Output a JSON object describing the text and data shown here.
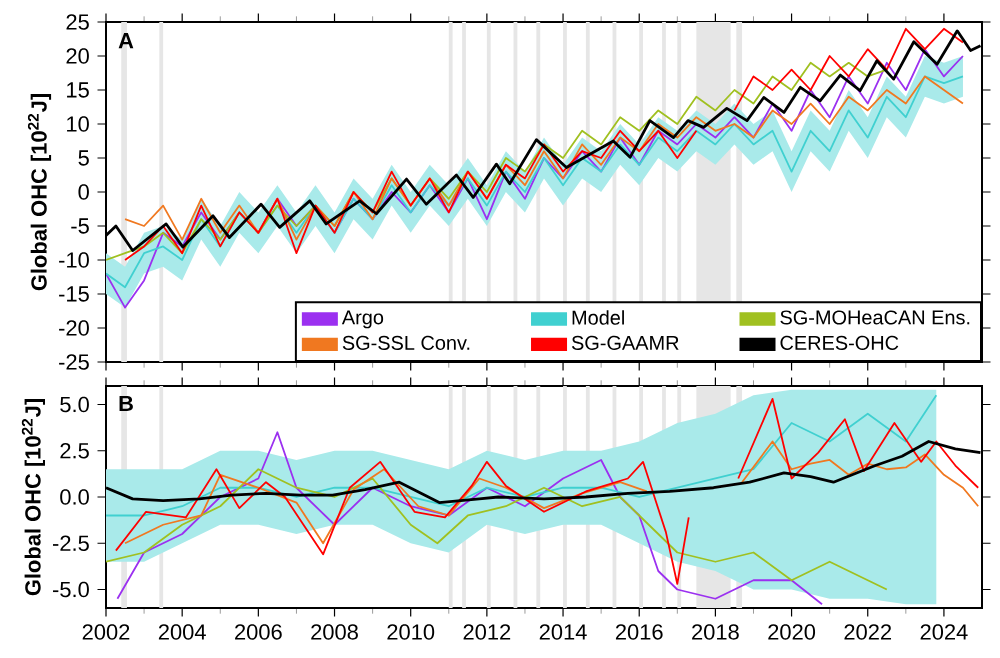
{
  "chart_data": [
    {
      "type": "line",
      "annotations": [
        "A"
      ],
      "ylabel": "Global OHC [10$^{22}$J]",
      "legend": "bottom right",
      "tick_labels": "y",
      "xlim": [
        2002,
        2025
      ],
      "xticks": [
        2002,
        2004,
        2006,
        2008,
        2010,
        2012,
        2014,
        2016,
        2018,
        2020,
        2022,
        2024
      ],
      "ylim": [
        -25,
        25
      ],
      "yticks": [
        -25,
        -20,
        -15,
        -10,
        -5,
        0,
        5,
        10,
        15,
        20,
        25
      ],
      "bands": [
        {
          "axis": "x",
          "from": 2002.4,
          "to": 2002.55,
          "color": "#e6e6e6"
        },
        {
          "axis": "x",
          "from": 2003.4,
          "to": 2003.5,
          "color": "#e6e6e6"
        },
        {
          "axis": "x",
          "from": 2011.0,
          "to": 2011.1,
          "color": "#e6e6e6"
        },
        {
          "axis": "x",
          "from": 2011.35,
          "to": 2011.45,
          "color": "#e6e6e6"
        },
        {
          "axis": "x",
          "from": 2012.0,
          "to": 2012.1,
          "color": "#e6e6e6"
        },
        {
          "axis": "x",
          "from": 2012.7,
          "to": 2012.8,
          "color": "#e6e6e6"
        },
        {
          "axis": "x",
          "from": 2013.3,
          "to": 2013.4,
          "color": "#e6e6e6"
        },
        {
          "axis": "x",
          "from": 2014.0,
          "to": 2014.1,
          "color": "#e6e6e6"
        },
        {
          "axis": "x",
          "from": 2014.6,
          "to": 2014.7,
          "color": "#e6e6e6"
        },
        {
          "axis": "x",
          "from": 2015.3,
          "to": 2015.4,
          "color": "#e6e6e6"
        },
        {
          "axis": "x",
          "from": 2016.0,
          "to": 2016.1,
          "color": "#e6e6e6"
        },
        {
          "axis": "x",
          "from": 2016.6,
          "to": 2016.7,
          "color": "#e6e6e6"
        },
        {
          "axis": "x",
          "from": 2017.0,
          "to": 2017.1,
          "color": "#e6e6e6"
        },
        {
          "axis": "x",
          "from": 2017.5,
          "to": 2018.4,
          "color": "#e6e6e6"
        },
        {
          "axis": "x",
          "from": 2018.55,
          "to": 2018.7,
          "color": "#e6e6e6"
        }
      ],
      "series": [
        {
          "name": "Argo",
          "color": "#9b30f0",
          "x": [
            2002,
            2002.5,
            2003,
            2003.5,
            2004,
            2004.5,
            2005,
            2005.5,
            2006,
            2006.5,
            2007,
            2007.5,
            2008,
            2008.5,
            2009,
            2009.5,
            2010,
            2010.5,
            2011,
            2011.5,
            2012,
            2012.5,
            2013,
            2013.5,
            2014,
            2014.5,
            2015,
            2015.5,
            2016,
            2016.5,
            2017,
            2017.5,
            2018,
            2018.5,
            2019,
            2019.5,
            2020,
            2020.5,
            2021,
            2021.5,
            2022,
            2022.5,
            2023,
            2023.5,
            2024,
            2024.5
          ],
          "values": [
            -12,
            -17,
            -13,
            -6,
            -8,
            -3,
            -7,
            -3,
            -6,
            -1,
            -5,
            -2,
            -6,
            -1,
            -4,
            0,
            -3,
            1,
            -3,
            2,
            -4,
            3,
            -1,
            5,
            2,
            6,
            3,
            8,
            4,
            9,
            7,
            10,
            8,
            11,
            8,
            13,
            9,
            15,
            11,
            17,
            13,
            19,
            15,
            21,
            17,
            20
          ]
        },
        {
          "name": "Model",
          "color": "#40d0d0",
          "x": [
            2002,
            2002.5,
            2003,
            2003.5,
            2004,
            2004.5,
            2005,
            2005.5,
            2006,
            2006.5,
            2007,
            2007.5,
            2008,
            2008.5,
            2009,
            2009.5,
            2010,
            2010.5,
            2011,
            2011.5,
            2012,
            2012.5,
            2013,
            2013.5,
            2014,
            2014.5,
            2015,
            2015.5,
            2016,
            2016.5,
            2017,
            2017.5,
            2018,
            2018.5,
            2019,
            2019.5,
            2020,
            2020.5,
            2021,
            2021.5,
            2022,
            2022.5,
            2023,
            2023.5,
            2024,
            2024.5
          ],
          "values": [
            -12,
            -14,
            -9,
            -8,
            -10,
            -4,
            -8,
            -3,
            -6,
            -2,
            -6,
            -2,
            -6,
            -1,
            -4,
            1,
            -3,
            1,
            -2,
            2,
            -2,
            3,
            0,
            5,
            1,
            5,
            3,
            7,
            4,
            8,
            6,
            9,
            7,
            10,
            7,
            9,
            3,
            9,
            6,
            12,
            8,
            14,
            11,
            17,
            16,
            17
          ],
          "lower": [
            -15,
            -17,
            -12,
            -11,
            -13,
            -7,
            -11,
            -6,
            -9,
            -5,
            -9,
            -5,
            -9,
            -4,
            -7,
            -2,
            -6,
            -2,
            -5,
            -1,
            -5,
            0,
            -3,
            2,
            -2,
            2,
            0,
            4,
            1,
            5,
            3,
            6,
            4,
            7,
            4,
            6,
            0,
            6,
            3,
            9,
            5,
            11,
            8,
            14,
            13,
            14
          ],
          "upper": [
            -9,
            -11,
            -6,
            -5,
            -7,
            -1,
            -5,
            0,
            -3,
            1,
            -3,
            1,
            -3,
            2,
            -1,
            4,
            0,
            4,
            1,
            5,
            1,
            6,
            3,
            8,
            4,
            8,
            6,
            10,
            7,
            11,
            9,
            12,
            10,
            13,
            10,
            12,
            6,
            12,
            9,
            15,
            11,
            17,
            14,
            20,
            19,
            20
          ]
        },
        {
          "name": "SG-MOHeaCAN Ens.",
          "color": "#a0c020",
          "x": [
            2002,
            2002.5,
            2003,
            2003.5,
            2004,
            2004.5,
            2005,
            2005.5,
            2006,
            2006.5,
            2007,
            2007.5,
            2008,
            2008.5,
            2009,
            2009.5,
            2010,
            2010.5,
            2011,
            2011.5,
            2012,
            2012.5,
            2013,
            2013.5,
            2014,
            2014.5,
            2015,
            2015.5,
            2016,
            2016.5,
            2017,
            2017.5,
            2018,
            2018.5,
            2019,
            2019.5,
            2020,
            2020.5,
            2021,
            2021.5,
            2022,
            2022.5
          ],
          "values": [
            -10,
            -9,
            -8,
            -6,
            -9,
            -4,
            -7,
            -3,
            -6,
            -2,
            -5,
            -2,
            -5,
            0,
            -3,
            2,
            -2,
            2,
            -1,
            3,
            0,
            5,
            3,
            7,
            5,
            9,
            7,
            11,
            9,
            12,
            10,
            14,
            12,
            15,
            13,
            17,
            15,
            19,
            17,
            19,
            17,
            18
          ]
        },
        {
          "name": "SG-SSL Conv.",
          "color": "#f07820",
          "x": [
            2002.5,
            2003,
            2003.5,
            2004,
            2004.5,
            2005,
            2005.5,
            2006,
            2006.5,
            2007,
            2007.5,
            2008,
            2008.5,
            2009,
            2009.5,
            2010,
            2010.5,
            2011,
            2011.5,
            2012,
            2012.5,
            2013,
            2013.5,
            2014,
            2014.5,
            2015,
            2015.5,
            2016,
            2016.5,
            2017,
            2017.5,
            2018,
            2018.5,
            2019,
            2019.5,
            2020,
            2020.5,
            2021,
            2021.5,
            2022,
            2022.5,
            2023,
            2023.5,
            2024,
            2024.5
          ],
          "values": [
            -4,
            -5,
            -2,
            -7,
            -1,
            -6,
            -2,
            -6,
            -1,
            -7,
            -2,
            -5,
            0,
            -4,
            2,
            -2,
            2,
            -2,
            3,
            -1,
            4,
            1,
            6,
            2,
            7,
            4,
            8,
            6,
            10,
            8,
            11,
            9,
            10,
            8,
            12,
            10,
            13,
            10,
            14,
            12,
            15,
            13,
            17,
            15,
            13
          ]
        },
        {
          "name": "SG-GAAMR",
          "color": "#ff0000",
          "x": [
            2002.5,
            2003,
            2003.5,
            2004,
            2004.5,
            2005,
            2005.5,
            2006,
            2006.5,
            2007,
            2007.5,
            2008,
            2008.5,
            2009,
            2009.5,
            2010,
            2010.5,
            2011,
            2011.5,
            2012,
            2012.5,
            2013,
            2013.5,
            2014,
            2014.5,
            2015,
            2015.5,
            2016,
            2016.5,
            2017,
            2017.5,
            2018,
            2018.5,
            2019,
            2019.5,
            2020,
            2020.5,
            2021,
            2021.5,
            2022,
            2022.5,
            2023,
            2023.5,
            2024,
            2024.5
          ],
          "values": [
            -10,
            -8,
            -5,
            -9,
            -2,
            -8,
            -3,
            -6,
            -1,
            -9,
            -2,
            -6,
            0,
            -3,
            3,
            -2,
            2,
            -3,
            3,
            -1,
            4,
            2,
            7,
            3,
            6,
            5,
            9,
            6,
            9,
            5,
            9,
            null,
            12,
            17,
            15,
            18,
            15,
            20,
            17,
            21,
            18,
            24,
            21,
            24,
            22
          ]
        },
        {
          "name": "CERES-OHC",
          "color": "#000000",
          "x": [
            2002.0,
            2002.26,
            2002.7,
            2003.58,
            2004.02,
            2004.81,
            2005.24,
            2006.07,
            2006.56,
            2007.35,
            2007.78,
            2008.66,
            2009.1,
            2009.89,
            2010.41,
            2011.2,
            2011.64,
            2012.25,
            2012.6,
            2013.3,
            2014.09,
            2015.32,
            2015.76,
            2016.28,
            2016.9,
            2017.28,
            2017.69,
            2018.3,
            2018.83,
            2019.27,
            2019.8,
            2020.23,
            2020.75,
            2021.28,
            2021.8,
            2022.24,
            2022.68,
            2023.21,
            2023.82,
            2024.35,
            2024.7,
            2024.96
          ],
          "values": [
            -6.4,
            -5,
            -8.6,
            -4.7,
            -8.1,
            -3.5,
            -6.7,
            -1.8,
            -5.2,
            -1.3,
            -4.7,
            -1.3,
            -3.2,
            1.9,
            -1.8,
            2.5,
            -0.8,
            4.1,
            1.2,
            7.7,
            3.6,
            7.5,
            5.1,
            10.5,
            8,
            10.5,
            9.5,
            12.3,
            10.5,
            13.9,
            11.7,
            15.4,
            13.4,
            17.2,
            14.9,
            19.3,
            16.6,
            22.1,
            18.8,
            23.7,
            20.8,
            21.5
          ]
        }
      ]
    },
    {
      "type": "line",
      "annotations": [
        "B"
      ],
      "ylabel": "Global OHC [10$^{22}$J]",
      "xlim": [
        2002,
        2025
      ],
      "xticks": [
        2002,
        2004,
        2006,
        2008,
        2010,
        2012,
        2014,
        2016,
        2018,
        2020,
        2022,
        2024
      ],
      "ylim": [
        -6,
        6
      ],
      "yticks": [
        {
          "value": -5,
          "label": "-5.0"
        },
        {
          "value": -2.5,
          "label": "-2.5"
        },
        {
          "value": 0,
          "label": "0.0"
        },
        {
          "value": 2.5,
          "label": "2.5"
        },
        {
          "value": 5,
          "label": "5.0"
        }
      ],
      "bands": [
        {
          "axis": "x",
          "from": 2002.4,
          "to": 2002.55,
          "color": "#e6e6e6"
        },
        {
          "axis": "x",
          "from": 2003.4,
          "to": 2003.5,
          "color": "#e6e6e6"
        },
        {
          "axis": "x",
          "from": 2011.0,
          "to": 2011.1,
          "color": "#e6e6e6"
        },
        {
          "axis": "x",
          "from": 2011.35,
          "to": 2011.45,
          "color": "#e6e6e6"
        },
        {
          "axis": "x",
          "from": 2012.0,
          "to": 2012.1,
          "color": "#e6e6e6"
        },
        {
          "axis": "x",
          "from": 2012.7,
          "to": 2012.8,
          "color": "#e6e6e6"
        },
        {
          "axis": "x",
          "from": 2013.3,
          "to": 2013.4,
          "color": "#e6e6e6"
        },
        {
          "axis": "x",
          "from": 2014.0,
          "to": 2014.1,
          "color": "#e6e6e6"
        },
        {
          "axis": "x",
          "from": 2014.6,
          "to": 2014.7,
          "color": "#e6e6e6"
        },
        {
          "axis": "x",
          "from": 2015.3,
          "to": 2015.4,
          "color": "#e6e6e6"
        },
        {
          "axis": "x",
          "from": 2016.0,
          "to": 2016.1,
          "color": "#e6e6e6"
        },
        {
          "axis": "x",
          "from": 2016.6,
          "to": 2016.7,
          "color": "#e6e6e6"
        },
        {
          "axis": "x",
          "from": 2017.0,
          "to": 2017.1,
          "color": "#e6e6e6"
        },
        {
          "axis": "x",
          "from": 2017.5,
          "to": 2018.4,
          "color": "#e6e6e6"
        },
        {
          "axis": "x",
          "from": 2018.55,
          "to": 2018.7,
          "color": "#e6e6e6"
        }
      ],
      "series": [
        {
          "color": "#9b30f0",
          "x": [
            2002.3,
            2003,
            2004,
            2005,
            2006,
            2006.5,
            2007,
            2008,
            2009,
            2010,
            2011,
            2012,
            2013,
            2014,
            2015,
            2015.5,
            2016,
            2016.5,
            2017,
            2018,
            2019,
            2020,
            2020.8
          ],
          "values": [
            -5.5,
            -3,
            -2,
            0,
            1.0,
            3.5,
            0.5,
            -1.5,
            0.5,
            -0.5,
            -1,
            0.5,
            -0.5,
            1.0,
            2.0,
            0,
            -1,
            -4,
            -5,
            -5.5,
            -4.5,
            -4.5,
            -5.8
          ]
        },
        {
          "color": "#40d0d0",
          "x": [
            2002,
            2003,
            2004,
            2005,
            2006,
            2007,
            2008,
            2009,
            2010,
            2011,
            2012,
            2013,
            2014,
            2015,
            2016,
            2017,
            2018,
            2019,
            2020,
            2021,
            2022,
            2023,
            2023.8
          ],
          "values": [
            -1.0,
            -1.0,
            -0.5,
            0.5,
            0.5,
            0,
            0.5,
            0.5,
            0,
            -0.5,
            0.5,
            0,
            0.5,
            0.5,
            0,
            0.5,
            1.0,
            1.5,
            4.0,
            3.0,
            4.5,
            3.0,
            5.5
          ],
          "lower": [
            -3.5,
            -3.5,
            -2.5,
            -1.5,
            -1.5,
            -2,
            -1.5,
            -1.5,
            -2.5,
            -3,
            -1.5,
            -2,
            -1.5,
            -1.5,
            -2.5,
            -3.5,
            -4,
            -5,
            -5,
            -5.5,
            -5.5,
            -5.8,
            -5.8
          ],
          "upper": [
            1.5,
            1.5,
            1.5,
            2.5,
            2.5,
            2,
            2.5,
            2.5,
            2,
            1.5,
            2.5,
            2,
            2.5,
            2.5,
            3,
            4,
            4.5,
            5.5,
            5.8,
            5.8,
            5.8,
            5.8,
            5.8
          ]
        },
        {
          "color": "#a0c020",
          "x": [
            2002,
            2003,
            2004,
            2005,
            2006,
            2007,
            2008,
            2009,
            2010,
            2010.7,
            2011.5,
            2012.5,
            2013.5,
            2014.5,
            2015.5,
            2016,
            2016.5,
            2017,
            2018,
            2019,
            2020,
            2021,
            2022,
            2022.5
          ],
          "values": [
            -3.5,
            -3,
            -1.5,
            -0.5,
            1.5,
            0.5,
            0,
            1.0,
            -1.5,
            -2.5,
            -1,
            -0.5,
            0.5,
            -0.5,
            0,
            -1,
            -2,
            -3,
            -3.5,
            -3,
            -4.5,
            -3.5,
            -4.5,
            -5.0
          ]
        },
        {
          "color": "#f07820",
          "x": [
            2002.5,
            2003.5,
            2004.5,
            2005,
            2006,
            2007,
            2007.7,
            2008.5,
            2009.3,
            2010.2,
            2011,
            2011.8,
            2012.5,
            2013.5,
            2014.5,
            2015.5,
            2016.2,
            2017.5,
            2018.7,
            2019.5,
            2020,
            2020.5,
            2021,
            2021.5,
            2022,
            2022.5,
            2023,
            2023.5,
            2024,
            2024.5,
            2024.9
          ],
          "values": [
            -2.5,
            -1.5,
            -1.0,
            1.2,
            0.5,
            -0.3,
            -2.5,
            0.4,
            1.5,
            -0.5,
            -1.0,
            1.0,
            0.5,
            -0.6,
            0.2,
            0.8,
            0.3,
            null,
            0.8,
            3.0,
            1.5,
            1.8,
            2.0,
            1.2,
            1.8,
            1.5,
            1.6,
            2.3,
            1.2,
            0.5,
            -0.5
          ]
        },
        {
          "color": "#ff0000",
          "x": [
            2002.26,
            2003.05,
            2004.1,
            2004.9,
            2005.5,
            2006.2,
            2006.7,
            2007.7,
            2008.4,
            2009.2,
            2010.1,
            2010.9,
            2011.6,
            2012.0,
            2012.5,
            2013.5,
            2014.6,
            2015.7,
            2016.1,
            2016.7,
            2017.0,
            2017.3,
            2017.6,
            2018.6,
            2019.5,
            2020.0,
            2020.7,
            2021.4,
            2021.9,
            2022.7,
            2023.4,
            2023.8,
            2024.3,
            2024.9
          ],
          "values": [
            -2.9,
            -0.8,
            -1.1,
            1.5,
            -0.6,
            0.8,
            0,
            -3.1,
            0.5,
            1.9,
            -0.8,
            -1.1,
            0.6,
            1.9,
            0.6,
            -0.8,
            0.3,
            1.0,
            1.9,
            -1.9,
            -4.7,
            -1.1,
            null,
            1.0,
            5.3,
            1.0,
            2.4,
            4.2,
            1.4,
            4.0,
            1.9,
            3.0,
            1.7,
            0.5
          ]
        },
        {
          "color": "#000000",
          "x": [
            2002,
            2002.7,
            2003.5,
            2004.45,
            2005.3,
            2006.2,
            2007.1,
            2007.95,
            2008.8,
            2009.7,
            2010.75,
            2011.8,
            2012.3,
            2013.5,
            2014.6,
            2015.7,
            2016.8,
            2017.95,
            2018.9,
            2019.8,
            2020.5,
            2021.1,
            2022.2,
            2022.9,
            2023.6,
            2024.3,
            2024.96
          ],
          "values": [
            0.5,
            -0.1,
            -0.2,
            -0.1,
            0.1,
            0.2,
            0.1,
            0.1,
            0.4,
            0.8,
            -0.3,
            -0.1,
            0,
            -0.1,
            0,
            0.2,
            0.3,
            0.5,
            0.8,
            1.3,
            1.1,
            0.8,
            1.7,
            2.2,
            3.0,
            2.6,
            2.4
          ]
        }
      ]
    }
  ]
}
